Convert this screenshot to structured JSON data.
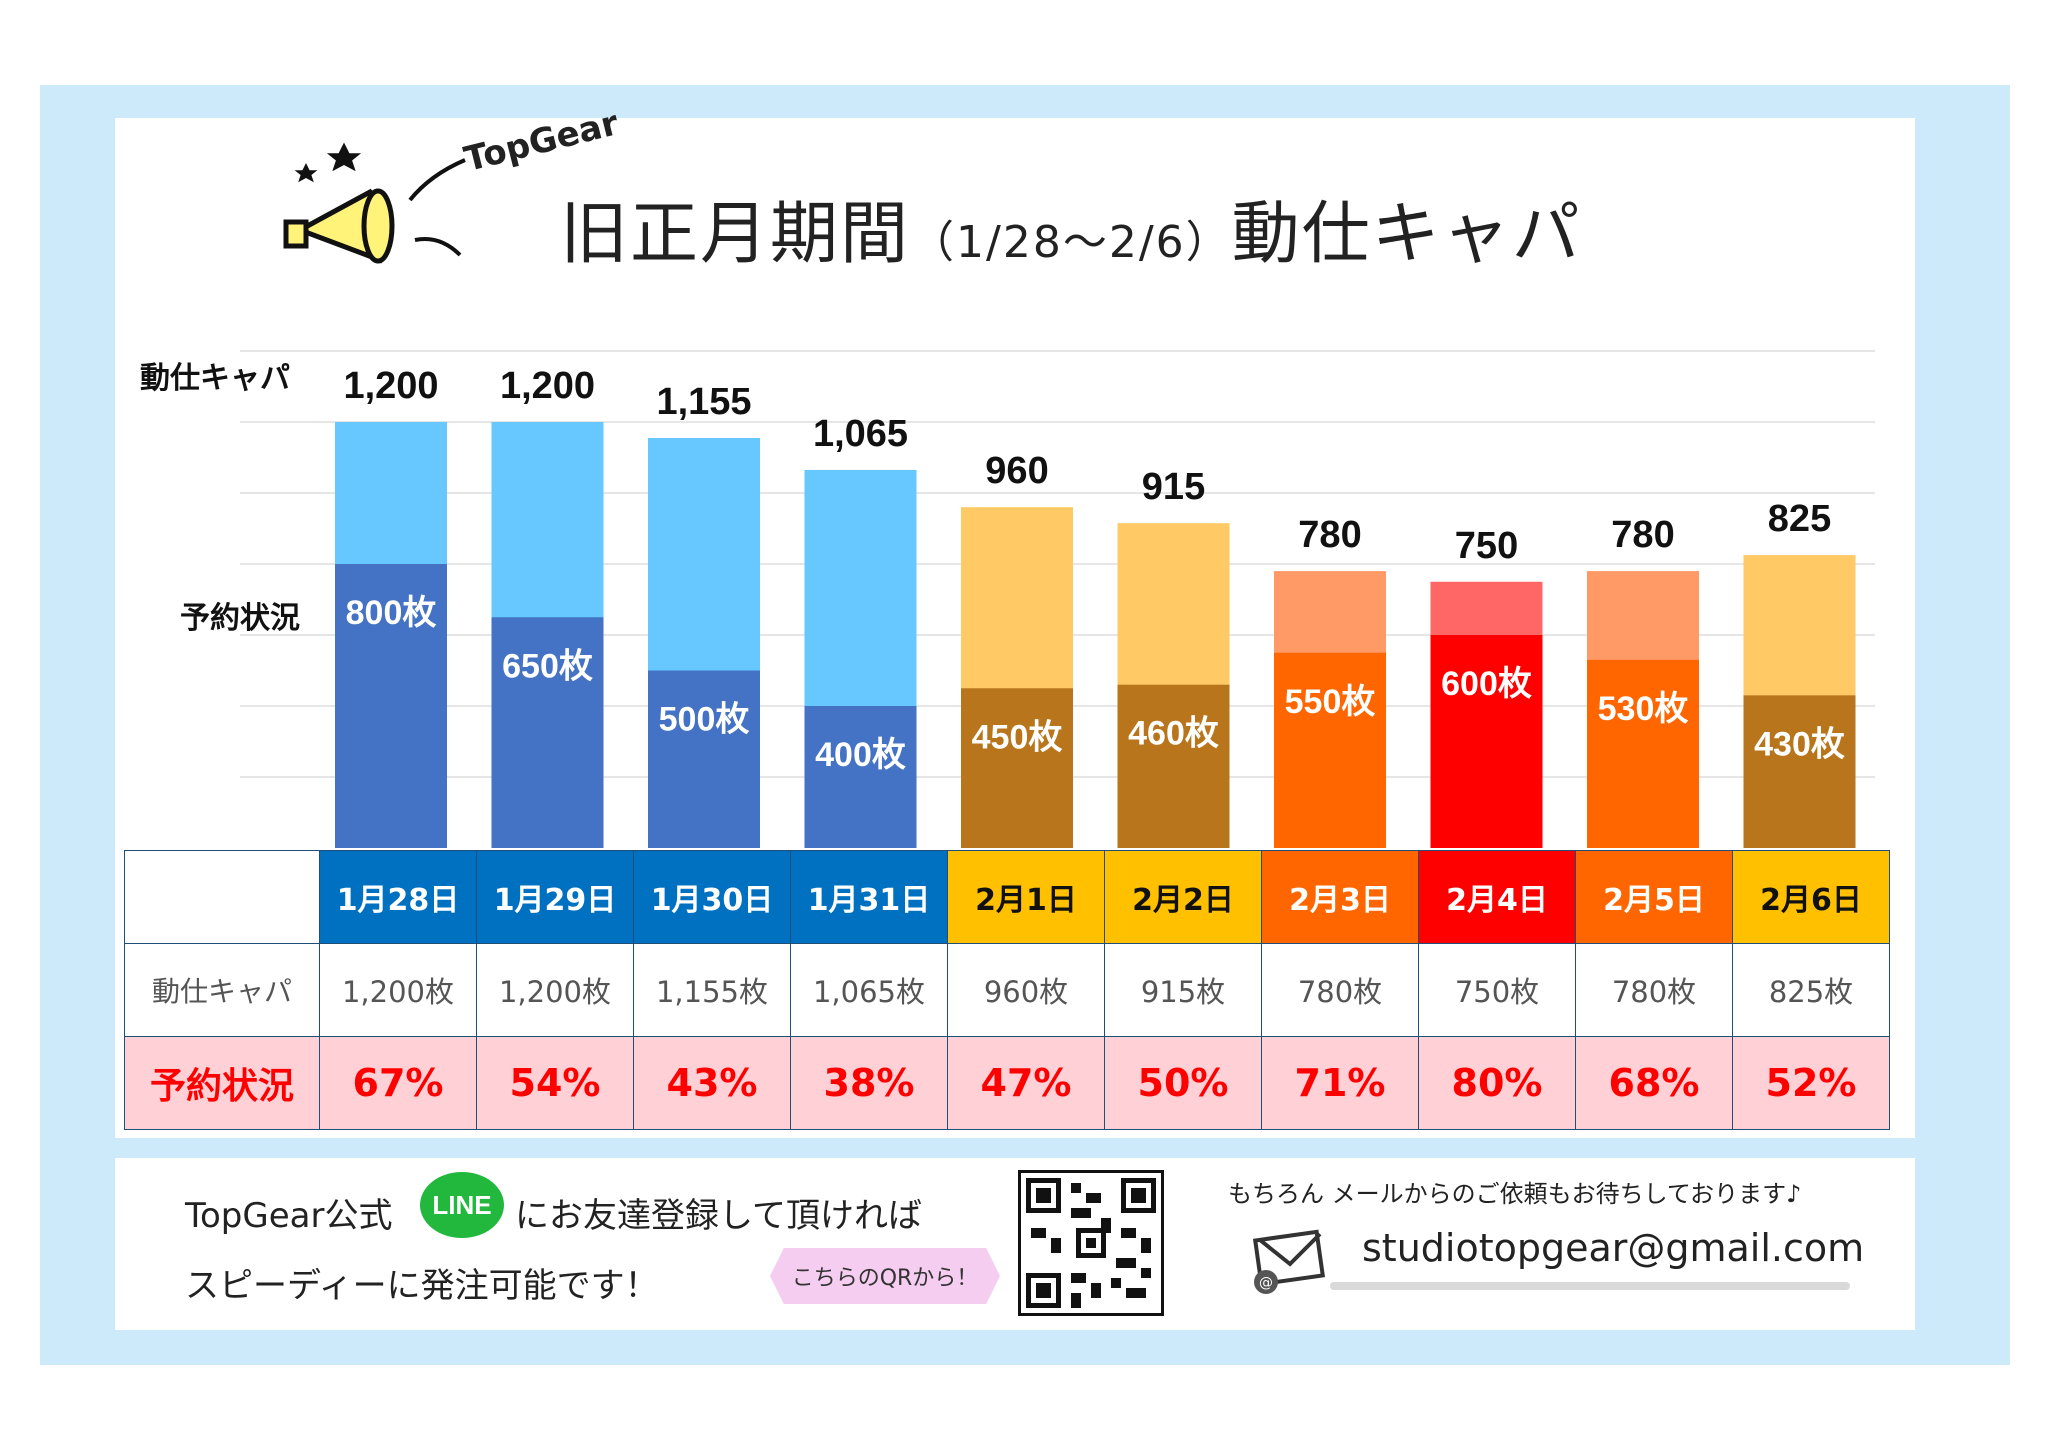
{
  "header": {
    "brand": "TopGear",
    "title_main": "旧正月期間",
    "title_period": "（1/28～2/6）",
    "title_tail": "動仕キャパ"
  },
  "row_labels": {
    "capacity": "動仕キャパ",
    "booking": "予約状況"
  },
  "colors": {
    "frame": "#cdeafb",
    "blue_cap": "#66c8ff",
    "blue_booked": "#4472c4",
    "yellow_cap": "#ffc966",
    "brown_booked": "#b8751c",
    "orange_cap": "#ff9966",
    "orange_booked": "#ff6600",
    "red_cap": "#ff6666",
    "red_booked": "#ff0000",
    "head_blue": "#0070c0",
    "head_yellow": "#ffc000",
    "head_orange": "#ff6600",
    "head_red": "#ff0000",
    "pct_text": "#ff0000",
    "pct_bg": "#ffd1d6"
  },
  "chart_data": {
    "type": "bar",
    "stacked_overlay": true,
    "categories": [
      "1月28日",
      "1月29日",
      "1月30日",
      "1月31日",
      "2月1日",
      "2月2日",
      "2月3日",
      "2月4日",
      "2月5日",
      "2月6日"
    ],
    "series": [
      {
        "name": "動仕キャパ",
        "values": [
          1200,
          1200,
          1155,
          1065,
          960,
          915,
          780,
          750,
          780,
          825
        ]
      },
      {
        "name": "予約状況",
        "values": [
          800,
          650,
          500,
          400,
          450,
          460,
          550,
          600,
          530,
          430
        ]
      }
    ],
    "capacity_labels": [
      "1,200",
      "1,200",
      "1,155",
      "1,065",
      "960",
      "915",
      "780",
      "750",
      "780",
      "825"
    ],
    "booked_labels": [
      "800枚",
      "650枚",
      "500枚",
      "400枚",
      "450枚",
      "460枚",
      "550枚",
      "600枚",
      "530枚",
      "430枚"
    ],
    "color_groups": [
      "blue",
      "blue",
      "blue",
      "blue",
      "yellow",
      "yellow",
      "orange",
      "red",
      "orange",
      "yellow"
    ],
    "ylim": [
      0,
      1200
    ],
    "grid": true
  },
  "table": {
    "dates": [
      "1月28日",
      "1月29日",
      "1月30日",
      "1月31日",
      "2月1日",
      "2月2日",
      "2月3日",
      "2月4日",
      "2月5日",
      "2月6日"
    ],
    "date_colors": [
      "head_blue",
      "head_blue",
      "head_blue",
      "head_blue",
      "head_yellow",
      "head_yellow",
      "head_orange",
      "head_red",
      "head_orange",
      "head_yellow"
    ],
    "capacity": [
      "1,200枚",
      "1,200枚",
      "1,155枚",
      "1,065枚",
      "960枚",
      "915枚",
      "780枚",
      "750枚",
      "780枚",
      "825枚"
    ],
    "booking_pct": [
      "67%",
      "54%",
      "43%",
      "38%",
      "47%",
      "50%",
      "71%",
      "80%",
      "68%",
      "52%"
    ]
  },
  "footer": {
    "line1_pre": "TopGear公式",
    "line_badge": "LINE",
    "line1_post": "にお友達登録して頂ければ",
    "line2": "スピーディーに発注可能です！",
    "qr_tag": "こちらのQRから！",
    "mail_note": "もちろん メールからのご依頼もお待ちしております♪",
    "email": "studiotopgear@gmail.com"
  }
}
